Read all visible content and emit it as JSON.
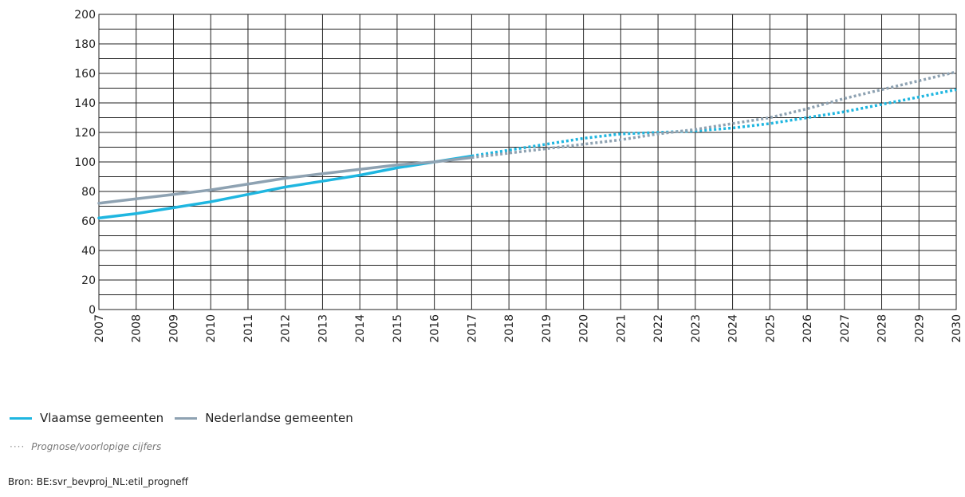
{
  "chart_data": {
    "type": "line",
    "x": [
      2007,
      2008,
      2009,
      2010,
      2011,
      2012,
      2013,
      2014,
      2015,
      2016,
      2017,
      2018,
      2019,
      2020,
      2021,
      2022,
      2023,
      2024,
      2025,
      2026,
      2027,
      2028,
      2029,
      2030
    ],
    "x_tick_labels": [
      "2007",
      "2008",
      "2009",
      "2010",
      "2011",
      "2012",
      "2013",
      "2014",
      "2015",
      "2016",
      "2017",
      "2018",
      "2019",
      "2020",
      "2021",
      "2022",
      "2023",
      "2024",
      "2025",
      "2026",
      "2027",
      "2028",
      "2029",
      "2030"
    ],
    "ylim": [
      0,
      200
    ],
    "y_ticks": [
      0,
      20,
      40,
      60,
      80,
      100,
      120,
      140,
      160,
      180,
      200
    ],
    "y_minor_step": 10,
    "grid": true,
    "forecast_start": 2017,
    "series": [
      {
        "name": "Vlaamse gemeenten",
        "color": "#1fb6e0",
        "values": [
          62,
          65,
          69,
          73,
          78,
          83,
          87,
          91,
          96,
          100,
          104,
          108,
          112,
          116,
          119,
          120,
          121,
          123,
          126,
          130,
          134,
          139,
          144,
          149
        ]
      },
      {
        "name": "Nederlandse gemeenten",
        "color": "#8ea2b2",
        "values": [
          72,
          75,
          78,
          81,
          85,
          89,
          92,
          95,
          98,
          100,
          103,
          106,
          109,
          112,
          115,
          119,
          122,
          126,
          130,
          136,
          143,
          149,
          155,
          161
        ]
      }
    ],
    "xlabel": "",
    "ylabel": "",
    "title": ""
  },
  "legend": {
    "items": [
      {
        "label": "Vlaamse gemeenten",
        "color": "#1fb6e0"
      },
      {
        "label": "Nederlandse gemeenten",
        "color": "#8ea2b2"
      }
    ]
  },
  "note": {
    "symbol": "····",
    "text": "Prognose/voorlopige cijfers"
  },
  "source": "Bron: BE:svr_bevproj_NL:etil_progneff"
}
